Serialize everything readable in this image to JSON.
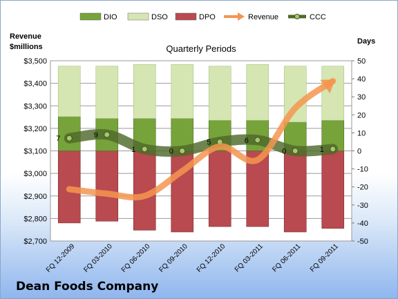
{
  "company": "Dean Foods Company",
  "chart_data": {
    "type": "bar",
    "title": "Quarterly Periods",
    "left_axis_title": [
      "Revenue",
      "$millions"
    ],
    "right_axis_title": "Days",
    "categories": [
      "FQ 12-2009",
      "FQ 03-2010",
      "FQ 06-2010",
      "FQ 09-2010",
      "FQ 12-2010",
      "FQ 03-2011",
      "FQ 06-2011",
      "FQ 09-2011"
    ],
    "legend": [
      "DIO",
      "DSO",
      "DPO",
      "Revenue",
      "CCC"
    ],
    "legend_position": "top",
    "left_axis": {
      "range": [
        2700,
        3500
      ],
      "ticks": [
        "$2,700",
        "$2,800",
        "$2,900",
        "$3,000",
        "$3,100",
        "$3,200",
        "$3,300",
        "$3,400",
        "$3,500"
      ]
    },
    "right_axis": {
      "range": [
        -50,
        50
      ],
      "ticks": [
        "-50",
        "-40",
        "-30",
        "-20",
        "-10",
        "0",
        "10",
        "20",
        "30",
        "40",
        "50"
      ]
    },
    "series": [
      {
        "name": "DIO",
        "axis": "right",
        "color": "#77a33b",
        "values": [
          19,
          18,
          18,
          18,
          17,
          17,
          16,
          17
        ]
      },
      {
        "name": "DSO",
        "axis": "right",
        "color": "#d5e6b3",
        "values": [
          28,
          29,
          30,
          30,
          30,
          31,
          31,
          30
        ]
      },
      {
        "name": "DPO",
        "axis": "right",
        "color": "#b84a50",
        "values": [
          -40,
          -39,
          -44,
          -45,
          -42,
          -42,
          -45,
          -43
        ]
      },
      {
        "name": "Revenue",
        "axis": "left",
        "color": "#f4954f",
        "values": [
          2930,
          2910,
          2900,
          3010,
          3120,
          3060,
          3290,
          3410
        ]
      },
      {
        "name": "CCC",
        "axis": "right",
        "color": "#4f6a2b",
        "values": [
          7,
          9,
          1,
          0,
          5,
          6,
          0,
          1
        ],
        "labels": [
          "7",
          "9",
          "1",
          "0",
          "5",
          "6",
          "0",
          "1"
        ]
      }
    ],
    "grid": true
  }
}
